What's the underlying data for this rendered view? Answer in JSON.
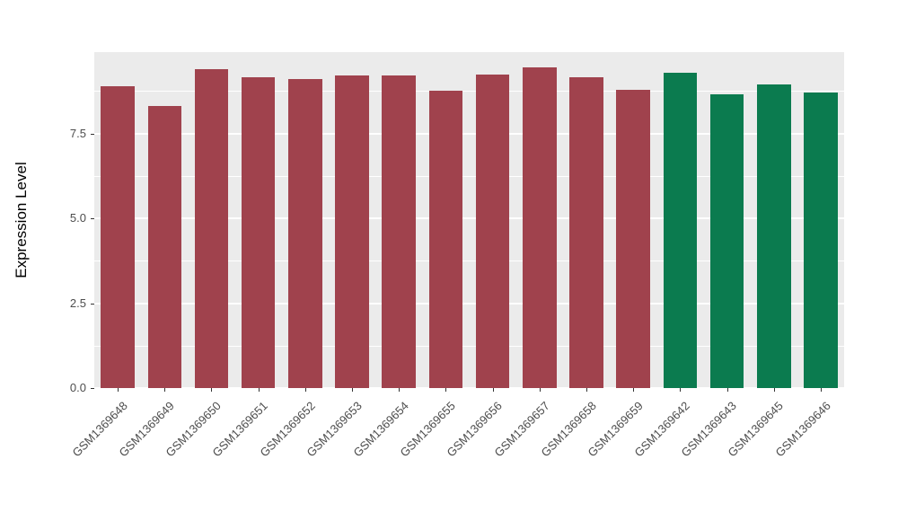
{
  "chart_data": {
    "type": "bar",
    "title": "",
    "xlabel": "",
    "ylabel": "Expression Level",
    "categories": [
      "GSM1369648",
      "GSM1369649",
      "GSM1369650",
      "GSM1369651",
      "GSM1369652",
      "GSM1369653",
      "GSM1369654",
      "GSM1369655",
      "GSM1369656",
      "GSM1369657",
      "GSM1369658",
      "GSM1369659",
      "GSM1369642",
      "GSM1369643",
      "GSM1369645",
      "GSM1369646"
    ],
    "values": [
      8.9,
      8.3,
      9.4,
      9.15,
      9.1,
      9.2,
      9.2,
      8.75,
      9.25,
      9.45,
      9.15,
      8.8,
      9.3,
      8.65,
      8.95,
      8.7
    ],
    "groups": [
      "group1",
      "group1",
      "group1",
      "group1",
      "group1",
      "group1",
      "group1",
      "group1",
      "group1",
      "group1",
      "group1",
      "group1",
      "group2",
      "group2",
      "group2",
      "group2"
    ],
    "group_colors": {
      "group1": "#A0424D",
      "group2": "#0B7B4F"
    },
    "yticks": [
      0.0,
      2.5,
      5.0,
      7.5
    ],
    "ytick_labels": [
      "0.0",
      "2.5",
      "5.0",
      "7.5"
    ],
    "minor_yticks": [
      1.25,
      3.75,
      6.25,
      8.75
    ],
    "ylim": [
      0,
      9.9
    ],
    "grid": true,
    "legend_position": "none",
    "panel_background": "#EBEBEB",
    "gridline_color": "#ffffff"
  }
}
